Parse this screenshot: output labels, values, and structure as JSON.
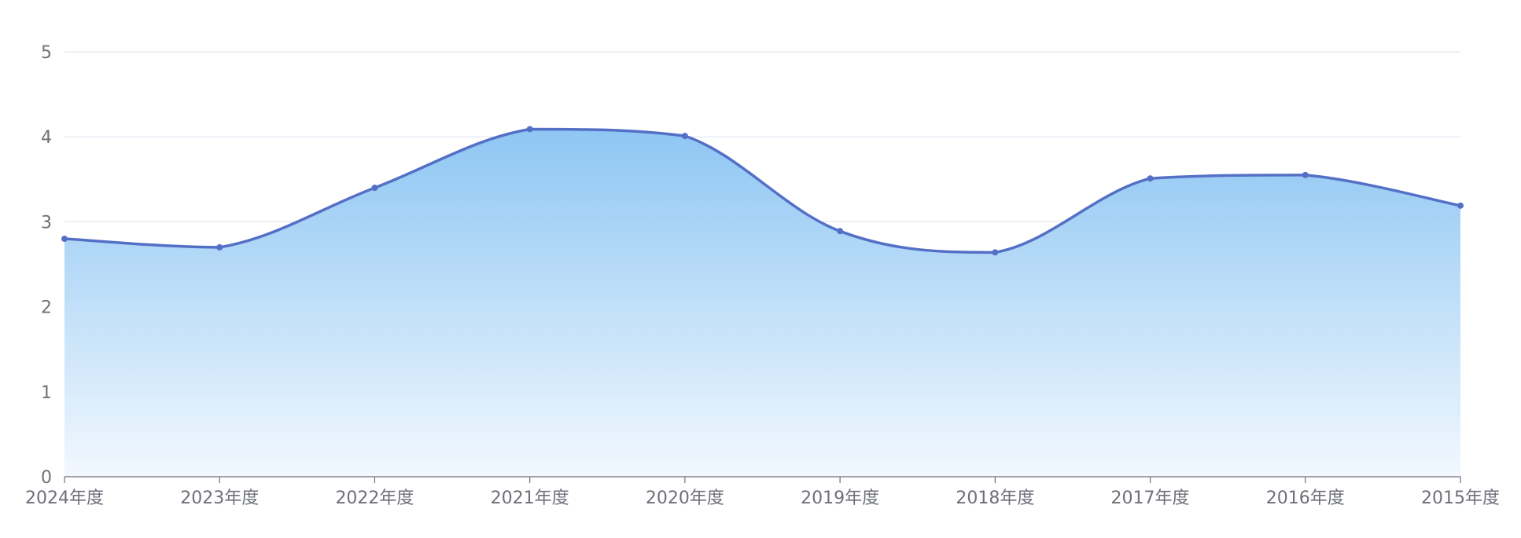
{
  "chart_data": {
    "type": "area",
    "title": "",
    "xlabel": "",
    "ylabel": "",
    "categories": [
      "2024年度",
      "2023年度",
      "2022年度",
      "2021年度",
      "2020年度",
      "2019年度",
      "2018年度",
      "2017年度",
      "2016年度",
      "2015年度"
    ],
    "series": [
      {
        "values": [
          2.8,
          2.7,
          3.4,
          4.09,
          4.01,
          2.89,
          2.64,
          3.51,
          3.55,
          3.19
        ]
      }
    ],
    "ylim": [
      0,
      5
    ],
    "yticks": [
      "0",
      "1",
      "2",
      "3",
      "4",
      "5"
    ],
    "grid": true,
    "legend": "none",
    "colors": {
      "line": "#5470c6",
      "area_top": "#8ec6f3",
      "area_bottom": "#f2f8fe",
      "grid": "#e0e6f1",
      "axis": "#6e7079",
      "text": "#6e7079"
    }
  }
}
